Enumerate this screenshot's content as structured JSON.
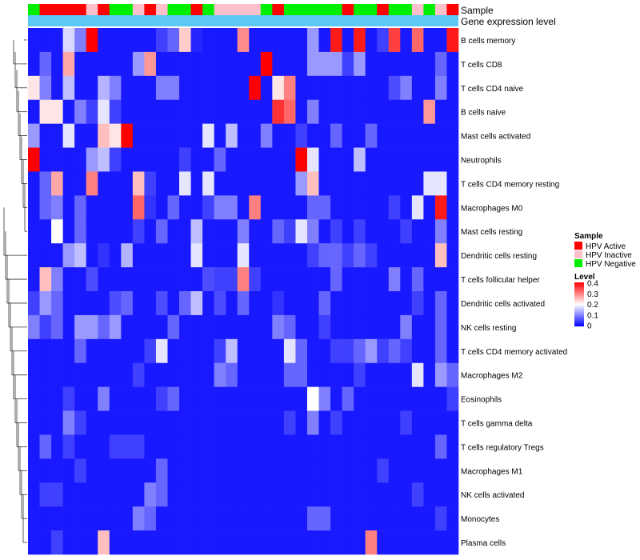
{
  "chart_data": {
    "type": "heatmap",
    "annotation_rows": [
      "Sample",
      "Gene expression level"
    ],
    "legend": {
      "sample_title": "Sample",
      "sample_entries": [
        {
          "label": "HPV Active",
          "color": "#ff0000"
        },
        {
          "label": "HPV Inactive",
          "color": "#ffc0cb"
        },
        {
          "label": "HPV Negative",
          "color": "#00ee00"
        }
      ],
      "level_title": "Level",
      "level_ticks": [
        "0.4",
        "0.3",
        "0.2",
        "0.1",
        "0"
      ],
      "level_range": [
        0,
        0.4
      ]
    },
    "color_scale": {
      "low": "#0000ff",
      "mid": "#ffffff",
      "high": "#ff0000",
      "mid_value": 0.2
    },
    "gene_expression_color": "#5bc8f5",
    "sample_groups": [
      "Negative",
      "Active",
      "Active",
      "Active",
      "Active",
      "Inactive",
      "Active",
      "Negative",
      "Negative",
      "Inactive",
      "Active",
      "Inactive",
      "Negative",
      "Negative",
      "Active",
      "Negative",
      "Inactive",
      "Inactive",
      "Inactive",
      "Inactive",
      "Negative",
      "Active",
      "Negative",
      "Negative",
      "Negative",
      "Negative",
      "Negative",
      "Active",
      "Negative",
      "Negative",
      "Active",
      "Negative",
      "Negative",
      "Inactive",
      "Negative",
      "Inactive",
      "Active"
    ],
    "rows": [
      "B cells memory",
      "T cells CD8",
      "T cells CD4 naive",
      "B cells naive",
      "Mast cells activated",
      "Neutrophils",
      "T cells CD4 memory resting",
      "Macrophages M0",
      "Mast cells resting",
      "Dendritic cells resting",
      "T cells follicular helper",
      "Dendritic cells activated",
      "NK cells resting",
      "T cells CD4 memory activated",
      "Macrophages M2",
      "Eosinophils",
      "T cells gamma delta",
      "T cells regulatory  Tregs",
      "Macrophages M1",
      "NK cells activated",
      "Monocytes",
      "Plasma cells"
    ],
    "values": [
      [
        0.02,
        0.02,
        0.02,
        0.17,
        0.1,
        0.4,
        0.02,
        0.02,
        0.02,
        0.02,
        0.02,
        0.05,
        0.08,
        0.24,
        0.03,
        0.02,
        0.02,
        0.02,
        0.29,
        0.02,
        0.02,
        0.02,
        0.02,
        0.02,
        0.12,
        0.02,
        0.38,
        0.02,
        0.38,
        0.02,
        0.05,
        0.35,
        0.02,
        0.32,
        0.02,
        0.02,
        0.38
      ],
      [
        0.02,
        0.08,
        0.02,
        0.27,
        0.02,
        0.02,
        0.02,
        0.02,
        0.02,
        0.12,
        0.28,
        0.02,
        0.02,
        0.02,
        0.02,
        0.02,
        0.02,
        0.02,
        0.02,
        0.02,
        0.4,
        0.02,
        0.02,
        0.02,
        0.12,
        0.12,
        0.12,
        0.05,
        0.12,
        0.02,
        0.02,
        0.02,
        0.02,
        0.02,
        0.02,
        0.08,
        0.02
      ],
      [
        0.22,
        0.1,
        0.02,
        0.15,
        0.02,
        0.02,
        0.14,
        0.1,
        0.02,
        0.02,
        0.02,
        0.1,
        0.1,
        0.02,
        0.02,
        0.02,
        0.02,
        0.02,
        0.02,
        0.4,
        0.02,
        0.22,
        0.3,
        0.02,
        0.02,
        0.02,
        0.02,
        0.02,
        0.02,
        0.02,
        0.02,
        0.06,
        0.1,
        0.02,
        0.02,
        0.1,
        0.02
      ],
      [
        0.02,
        0.22,
        0.22,
        0.02,
        0.1,
        0.05,
        0.18,
        0.05,
        0.02,
        0.02,
        0.02,
        0.02,
        0.02,
        0.02,
        0.02,
        0.02,
        0.02,
        0.02,
        0.02,
        0.02,
        0.02,
        0.36,
        0.32,
        0.02,
        0.1,
        0.02,
        0.02,
        0.02,
        0.02,
        0.02,
        0.02,
        0.02,
        0.02,
        0.02,
        0.28,
        0.02,
        0.02
      ],
      [
        0.12,
        0.02,
        0.02,
        0.18,
        0.02,
        0.02,
        0.25,
        0.22,
        0.4,
        0.02,
        0.02,
        0.02,
        0.02,
        0.02,
        0.02,
        0.18,
        0.02,
        0.15,
        0.02,
        0.02,
        0.1,
        0.02,
        0.02,
        0.05,
        0.02,
        0.02,
        0.08,
        0.02,
        0.02,
        0.08,
        0.02,
        0.02,
        0.02,
        0.02,
        0.02,
        0.02,
        0.02
      ],
      [
        0.4,
        0.02,
        0.02,
        0.02,
        0.02,
        0.12,
        0.15,
        0.05,
        0.02,
        0.02,
        0.02,
        0.02,
        0.02,
        0.05,
        0.02,
        0.02,
        0.08,
        0.02,
        0.02,
        0.02,
        0.02,
        0.02,
        0.02,
        0.4,
        0.18,
        0.02,
        0.02,
        0.02,
        0.15,
        0.02,
        0.02,
        0.02,
        0.02,
        0.02,
        0.02,
        0.02,
        0.02
      ],
      [
        0.02,
        0.08,
        0.27,
        0.02,
        0.02,
        0.3,
        0.02,
        0.02,
        0.02,
        0.25,
        0.05,
        0.02,
        0.02,
        0.18,
        0.02,
        0.18,
        0.02,
        0.02,
        0.02,
        0.02,
        0.02,
        0.02,
        0.02,
        0.12,
        0.25,
        0.02,
        0.02,
        0.02,
        0.02,
        0.02,
        0.02,
        0.02,
        0.02,
        0.02,
        0.18,
        0.18,
        0.02
      ],
      [
        0.02,
        0.08,
        0.1,
        0.02,
        0.08,
        0.02,
        0.02,
        0.02,
        0.02,
        0.32,
        0.04,
        0.02,
        0.08,
        0.02,
        0.02,
        0.05,
        0.1,
        0.1,
        0.02,
        0.3,
        0.02,
        0.02,
        0.02,
        0.02,
        0.08,
        0.08,
        0.02,
        0.02,
        0.02,
        0.02,
        0.02,
        0.05,
        0.02,
        0.18,
        0.02,
        0.38,
        0.02
      ],
      [
        0.02,
        0.02,
        0.2,
        0.02,
        0.08,
        0.02,
        0.02,
        0.02,
        0.02,
        0.05,
        0.02,
        0.08,
        0.02,
        0.02,
        0.15,
        0.02,
        0.02,
        0.02,
        0.1,
        0.02,
        0.02,
        0.08,
        0.05,
        0.18,
        0.1,
        0.02,
        0.05,
        0.02,
        0.05,
        0.02,
        0.02,
        0.02,
        0.05,
        0.02,
        0.02,
        0.1,
        0.02
      ],
      [
        0.02,
        0.02,
        0.02,
        0.12,
        0.15,
        0.02,
        0.04,
        0.02,
        0.14,
        0.02,
        0.02,
        0.02,
        0.02,
        0.02,
        0.18,
        0.02,
        0.02,
        0.02,
        0.18,
        0.02,
        0.02,
        0.02,
        0.02,
        0.02,
        0.05,
        0.08,
        0.08,
        0.05,
        0.08,
        0.05,
        0.02,
        0.02,
        0.02,
        0.02,
        0.02,
        0.25,
        0.02
      ],
      [
        0.02,
        0.25,
        0.1,
        0.02,
        0.02,
        0.06,
        0.02,
        0.02,
        0.02,
        0.02,
        0.02,
        0.02,
        0.02,
        0.02,
        0.02,
        0.06,
        0.05,
        0.05,
        0.3,
        0.05,
        0.02,
        0.02,
        0.02,
        0.02,
        0.02,
        0.02,
        0.08,
        0.02,
        0.02,
        0.02,
        0.02,
        0.1,
        0.02,
        0.08,
        0.02,
        0.02,
        0.02
      ],
      [
        0.05,
        0.12,
        0.08,
        0.02,
        0.02,
        0.02,
        0.02,
        0.06,
        0.08,
        0.02,
        0.02,
        0.06,
        0.02,
        0.08,
        0.15,
        0.02,
        0.06,
        0.02,
        0.08,
        0.02,
        0.02,
        0.04,
        0.02,
        0.02,
        0.02,
        0.08,
        0.02,
        0.02,
        0.02,
        0.02,
        0.02,
        0.02,
        0.02,
        0.05,
        0.02,
        0.08,
        0.02
      ],
      [
        0.1,
        0.05,
        0.08,
        0.02,
        0.12,
        0.12,
        0.08,
        0.12,
        0.02,
        0.02,
        0.02,
        0.02,
        0.08,
        0.02,
        0.02,
        0.02,
        0.02,
        0.02,
        0.02,
        0.02,
        0.02,
        0.1,
        0.08,
        0.02,
        0.02,
        0.05,
        0.02,
        0.02,
        0.02,
        0.02,
        0.02,
        0.02,
        0.1,
        0.02,
        0.02,
        0.08,
        0.02
      ],
      [
        0.02,
        0.02,
        0.02,
        0.02,
        0.08,
        0.02,
        0.02,
        0.02,
        0.02,
        0.02,
        0.05,
        0.18,
        0.02,
        0.02,
        0.02,
        0.02,
        0.05,
        0.15,
        0.02,
        0.02,
        0.02,
        0.02,
        0.18,
        0.08,
        0.02,
        0.02,
        0.05,
        0.05,
        0.08,
        0.12,
        0.05,
        0.08,
        0.05,
        0.02,
        0.02,
        0.08,
        0.02
      ],
      [
        0.02,
        0.02,
        0.02,
        0.02,
        0.02,
        0.02,
        0.02,
        0.02,
        0.02,
        0.05,
        0.02,
        0.02,
        0.02,
        0.02,
        0.02,
        0.02,
        0.1,
        0.08,
        0.02,
        0.02,
        0.02,
        0.02,
        0.08,
        0.08,
        0.02,
        0.02,
        0.02,
        0.02,
        0.05,
        0.02,
        0.02,
        0.02,
        0.02,
        0.18,
        0.02,
        0.12,
        0.08
      ],
      [
        0.02,
        0.02,
        0.02,
        0.05,
        0.02,
        0.02,
        0.1,
        0.02,
        0.02,
        0.02,
        0.02,
        0.05,
        0.08,
        0.02,
        0.02,
        0.02,
        0.02,
        0.02,
        0.02,
        0.02,
        0.02,
        0.02,
        0.02,
        0.02,
        0.2,
        0.1,
        0.02,
        0.08,
        0.02,
        0.02,
        0.02,
        0.02,
        0.02,
        0.02,
        0.02,
        0.02,
        0.05
      ],
      [
        0.02,
        0.02,
        0.02,
        0.1,
        0.05,
        0.02,
        0.02,
        0.02,
        0.02,
        0.02,
        0.02,
        0.02,
        0.02,
        0.02,
        0.02,
        0.02,
        0.02,
        0.02,
        0.02,
        0.02,
        0.02,
        0.02,
        0.05,
        0.02,
        0.1,
        0.02,
        0.05,
        0.02,
        0.02,
        0.02,
        0.02,
        0.02,
        0.05,
        0.02,
        0.02,
        0.02,
        0.02
      ],
      [
        0.02,
        0.08,
        0.02,
        0.05,
        0.02,
        0.02,
        0.02,
        0.05,
        0.05,
        0.05,
        0.02,
        0.02,
        0.02,
        0.02,
        0.02,
        0.02,
        0.02,
        0.02,
        0.02,
        0.02,
        0.02,
        0.02,
        0.02,
        0.02,
        0.02,
        0.02,
        0.02,
        0.02,
        0.02,
        0.02,
        0.02,
        0.02,
        0.02,
        0.02,
        0.02,
        0.08,
        0.02
      ],
      [
        0.02,
        0.02,
        0.02,
        0.02,
        0.05,
        0.02,
        0.02,
        0.02,
        0.02,
        0.02,
        0.02,
        0.08,
        0.02,
        0.02,
        0.02,
        0.02,
        0.02,
        0.02,
        0.02,
        0.02,
        0.02,
        0.02,
        0.02,
        0.02,
        0.02,
        0.02,
        0.02,
        0.02,
        0.02,
        0.02,
        0.05,
        0.02,
        0.02,
        0.02,
        0.02,
        0.02,
        0.02
      ],
      [
        0.02,
        0.05,
        0.05,
        0.02,
        0.02,
        0.02,
        0.02,
        0.02,
        0.02,
        0.02,
        0.1,
        0.08,
        0.02,
        0.02,
        0.02,
        0.02,
        0.02,
        0.02,
        0.02,
        0.02,
        0.02,
        0.02,
        0.02,
        0.02,
        0.02,
        0.02,
        0.02,
        0.02,
        0.02,
        0.02,
        0.02,
        0.02,
        0.02,
        0.05,
        0.02,
        0.02,
        0.02
      ],
      [
        0.02,
        0.02,
        0.02,
        0.02,
        0.02,
        0.02,
        0.02,
        0.02,
        0.02,
        0.1,
        0.08,
        0.02,
        0.02,
        0.02,
        0.02,
        0.02,
        0.02,
        0.02,
        0.02,
        0.02,
        0.02,
        0.02,
        0.02,
        0.02,
        0.08,
        0.08,
        0.02,
        0.02,
        0.02,
        0.02,
        0.02,
        0.02,
        0.02,
        0.02,
        0.02,
        0.05,
        0.02
      ],
      [
        0.02,
        0.02,
        0.05,
        0.02,
        0.02,
        0.02,
        0.25,
        0.02,
        0.02,
        0.02,
        0.02,
        0.02,
        0.02,
        0.02,
        0.02,
        0.02,
        0.02,
        0.02,
        0.02,
        0.02,
        0.02,
        0.02,
        0.02,
        0.02,
        0.02,
        0.02,
        0.02,
        0.02,
        0.02,
        0.3,
        0.02,
        0.02,
        0.02,
        0.02,
        0.02,
        0.02,
        0.02
      ]
    ]
  }
}
